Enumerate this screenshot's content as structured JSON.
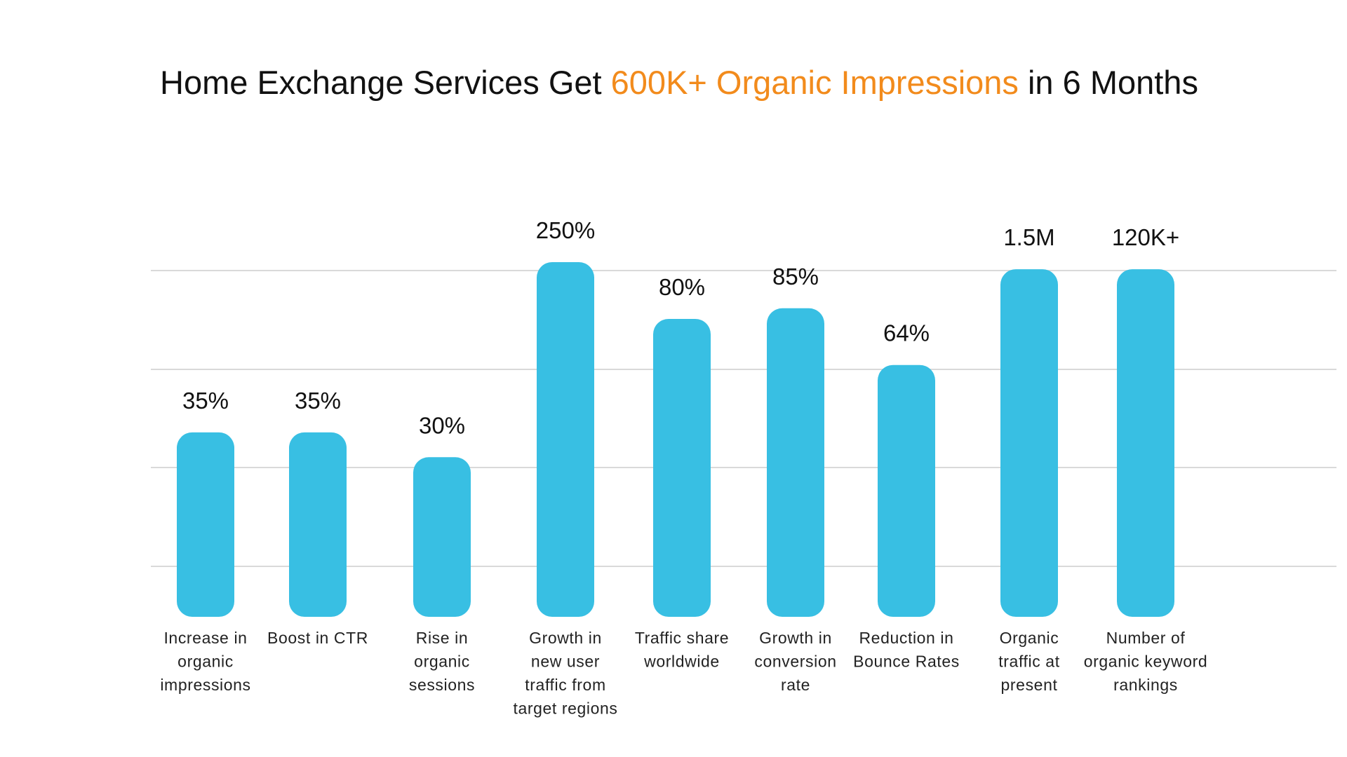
{
  "chart_data": {
    "type": "bar",
    "title": {
      "prefix": "Home Exchange Services Get ",
      "highlight": "600K+ Organic Impressions",
      "suffix": " in 6 Months"
    },
    "categories": [
      [
        "Increase in",
        "organic",
        "impressions"
      ],
      [
        "Boost in CTR"
      ],
      [
        "Rise in",
        "organic",
        "sessions"
      ],
      [
        "Growth in",
        "new user",
        "traffic from",
        "target regions"
      ],
      [
        "Traffic share",
        "worldwide"
      ],
      [
        "Growth in",
        "conversion",
        "rate"
      ],
      [
        "Reduction in",
        "Bounce Rates"
      ],
      [
        "Organic",
        "traffic at",
        "present"
      ],
      [
        "Number of",
        "organic keyword",
        "rankings"
      ]
    ],
    "value_labels": [
      "35%",
      "35%",
      "30%",
      "250%",
      "80%",
      "85%",
      "64%",
      "1.5M",
      "120K+"
    ],
    "bar_heights_relative": [
      0.52,
      0.52,
      0.45,
      1.0,
      0.84,
      0.87,
      0.71,
      0.98,
      0.98
    ],
    "grid": true,
    "xlabel": "",
    "ylabel": ""
  },
  "colors": {
    "bar": "#38bfe3",
    "accent": "#f28b1c",
    "text": "#111111",
    "grid": "#d9d9d9"
  }
}
